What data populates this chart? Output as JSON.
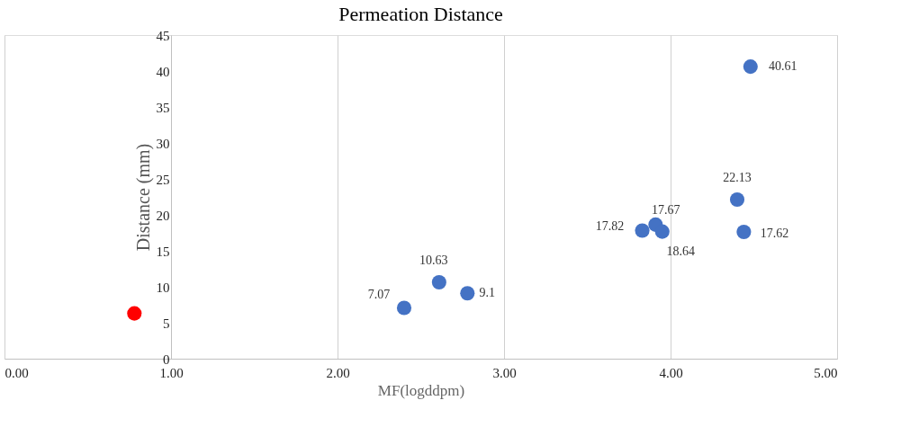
{
  "chart_data": {
    "type": "scatter",
    "title": "Permeation Distance",
    "xlabel": "MF(logddpm)",
    "ylabel": "Distance (mm)",
    "xlim": [
      0,
      5
    ],
    "ylim": [
      0,
      45
    ],
    "xticks": [
      {
        "value": 0,
        "label": "0.00"
      },
      {
        "value": 1,
        "label": "1.00"
      },
      {
        "value": 2,
        "label": "2.00"
      },
      {
        "value": 3,
        "label": "3.00"
      },
      {
        "value": 4,
        "label": "4.00"
      },
      {
        "value": 5,
        "label": "5.00"
      }
    ],
    "yticks": [
      0,
      5,
      10,
      15,
      20,
      25,
      30,
      35,
      40,
      45
    ],
    "grid": "x",
    "marker": "circle",
    "legend": false,
    "series": [
      {
        "color": "#4472c4",
        "x": [
          2.4,
          2.61,
          2.78,
          3.83,
          3.91,
          3.95,
          4.4,
          4.44,
          4.48
        ],
        "values": [
          7.07,
          10.63,
          9.1,
          17.82,
          18.64,
          17.67,
          22.13,
          17.62,
          40.61
        ],
        "value_labels": [
          "7.07",
          "10.63",
          "9.1",
          "17.82",
          "18.64",
          "17.67",
          "22.13",
          "17.62",
          "40.61"
        ]
      },
      {
        "color": "#ff0000",
        "x": [
          0.78
        ],
        "values": [
          6.3
        ]
      }
    ]
  }
}
